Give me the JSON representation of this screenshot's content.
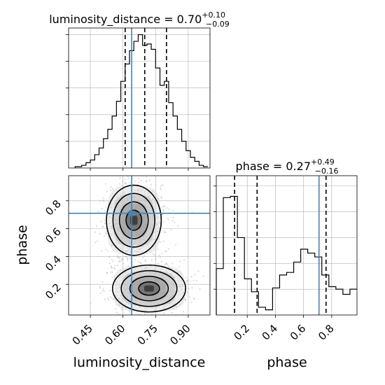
{
  "chart_data": {
    "type": "corner",
    "parameters": [
      "luminosity_distance",
      "phase"
    ],
    "truths": {
      "luminosity_distance": 0.64,
      "phase": 0.71
    },
    "panels": [
      {
        "kind": "histogram",
        "parameter": "luminosity_distance",
        "title": {
          "label": "luminosity_distance = 0.70",
          "plus": "+0.10",
          "minus": "−0.09"
        },
        "xlim": [
          0.35,
          1.0
        ],
        "ylim": [
          0,
          1
        ],
        "grid": true,
        "bin_edges": [
          0.38,
          0.4,
          0.41,
          0.43,
          0.45,
          0.47,
          0.49,
          0.51,
          0.53,
          0.55,
          0.57,
          0.59,
          0.61,
          0.63,
          0.65,
          0.67,
          0.69,
          0.71,
          0.73,
          0.75,
          0.77,
          0.79,
          0.81,
          0.83,
          0.85,
          0.87,
          0.89,
          0.91,
          0.93,
          0.95,
          0.97,
          0.99
        ],
        "bin_heights": [
          0.01,
          0.01,
          0.02,
          0.04,
          0.06,
          0.1,
          0.15,
          0.22,
          0.29,
          0.39,
          0.5,
          0.65,
          0.78,
          0.88,
          0.95,
          1.0,
          0.92,
          0.93,
          0.89,
          0.75,
          0.62,
          0.65,
          0.49,
          0.39,
          0.29,
          0.2,
          0.13,
          0.08,
          0.05,
          0.02,
          0.01
        ],
        "quantiles": [
          0.61,
          0.7,
          0.8
        ]
      },
      {
        "kind": "histogram",
        "parameter": "phase",
        "title": {
          "label": "phase = 0.27",
          "plus": "+0.49",
          "minus": "−0.16"
        },
        "xlim": [
          -0.02,
          0.98
        ],
        "ylim": [
          0,
          1
        ],
        "grid": true,
        "bin_edges": [
          -0.02,
          0.03,
          0.08,
          0.13,
          0.18,
          0.23,
          0.28,
          0.33,
          0.38,
          0.43,
          0.48,
          0.53,
          0.58,
          0.63,
          0.68,
          0.73,
          0.78,
          0.83,
          0.88,
          0.93,
          0.98
        ],
        "bin_heights": [
          0.36,
          0.91,
          0.92,
          0.6,
          0.28,
          0.18,
          0.06,
          0.04,
          0.21,
          0.31,
          0.33,
          0.41,
          0.51,
          0.48,
          0.45,
          0.31,
          0.22,
          0.2,
          0.16,
          0.2
        ],
        "quantiles": [
          0.11,
          0.27,
          0.76
        ]
      },
      {
        "kind": "2d",
        "x": "luminosity_distance",
        "y": "phase",
        "xlim": [
          0.35,
          1.0
        ],
        "ylim": [
          -0.02,
          0.98
        ],
        "grid": true,
        "xticks": [
          0.45,
          0.6,
          0.75,
          0.9
        ],
        "yticks": [
          0.2,
          0.4,
          0.6,
          0.8
        ],
        "xlabel": "luminosity_distance",
        "ylabel": "phase",
        "modes": [
          {
            "cx": 0.65,
            "cy": 0.66,
            "sx": 0.06,
            "sy": 0.12
          },
          {
            "cx": 0.72,
            "cy": 0.17,
            "sx": 0.08,
            "sy": 0.08
          }
        ]
      }
    ],
    "bottom_right_panel": {
      "xticks": [
        0.2,
        0.4,
        0.6,
        0.8
      ],
      "xlabel": "phase"
    }
  }
}
